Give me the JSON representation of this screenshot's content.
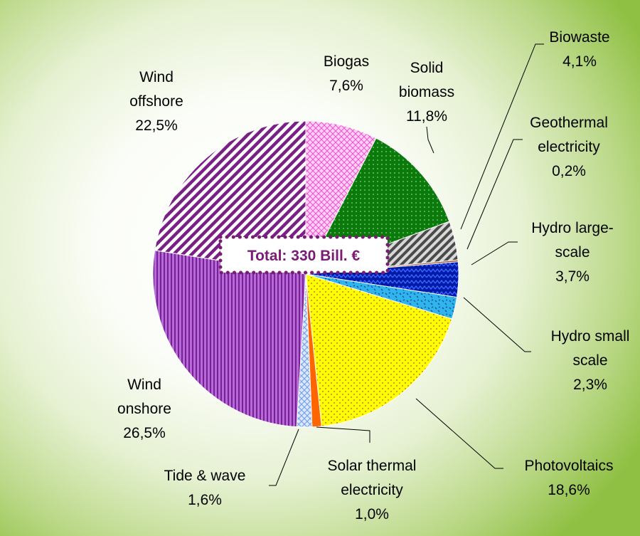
{
  "chart_data": {
    "type": "pie",
    "title": "",
    "center_label": "Total: 330 Bill. €",
    "slices": [
      {
        "key": "biogas",
        "label_lines": [
          "Biogas"
        ],
        "value_text": "7,6%",
        "value": 7.6,
        "color": "#f7b5ee",
        "pattern": "crosshatch-pink"
      },
      {
        "key": "solid",
        "label_lines": [
          "Solid",
          "biomass"
        ],
        "value_text": "11,8%",
        "value": 11.8,
        "color": "#0b7d0b",
        "pattern": "dots-green"
      },
      {
        "key": "biowaste",
        "label_lines": [
          "Biowaste"
        ],
        "value_text": "4,1%",
        "value": 4.1,
        "color": "#7a7a7a",
        "pattern": "diag-gray"
      },
      {
        "key": "geothermal",
        "label_lines": [
          "Geothermal",
          "electricity"
        ],
        "value_text": "0,2%",
        "value": 0.2,
        "color": "#a0522d",
        "pattern": "solid"
      },
      {
        "key": "hydro_large",
        "label_lines": [
          "Hydro large-",
          "scale"
        ],
        "value_text": "3,7%",
        "value": 3.7,
        "color": "#0022cc",
        "pattern": "zigzag-blue"
      },
      {
        "key": "hydro_small",
        "label_lines": [
          "Hydro small",
          "scale"
        ],
        "value_text": "2,3%",
        "value": 2.3,
        "color": "#33bbee",
        "pattern": "dots-cyan"
      },
      {
        "key": "pv",
        "label_lines": [
          "Photovoltaics"
        ],
        "value_text": "18,6%",
        "value": 18.6,
        "color": "#ffff00",
        "pattern": "dots-yellow"
      },
      {
        "key": "solar_thermal",
        "label_lines": [
          "Solar thermal",
          "electricity"
        ],
        "value_text": "1,0%",
        "value": 1.0,
        "color": "#ff6600",
        "pattern": "solid"
      },
      {
        "key": "tide",
        "label_lines": [
          "Tide & wave"
        ],
        "value_text": "1,6%",
        "value": 1.6,
        "color": "#aaccff",
        "pattern": "lattice-blue"
      },
      {
        "key": "wind_on",
        "label_lines": [
          "Wind",
          "onshore"
        ],
        "value_text": "26,5%",
        "value": 26.5,
        "color": "#9b3fbf",
        "pattern": "vlines-purple"
      },
      {
        "key": "wind_off",
        "label_lines": [
          "Wind",
          "offshore"
        ],
        "value_text": "22,5%",
        "value": 22.5,
        "color": "#7a1f86",
        "pattern": "diag-purple"
      }
    ],
    "legend": "none"
  }
}
